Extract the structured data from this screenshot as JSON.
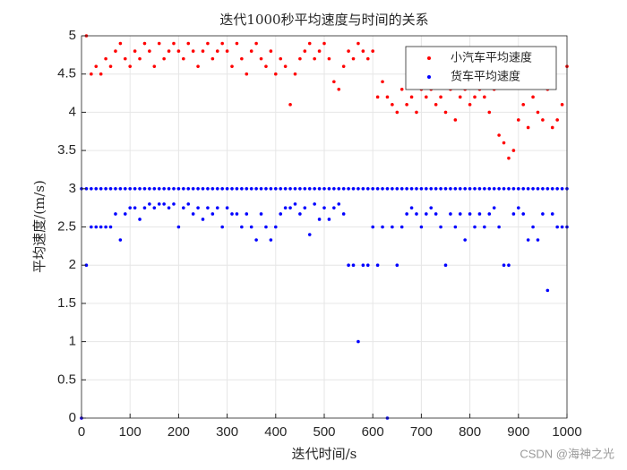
{
  "chart_data": {
    "type": "scatter",
    "title": "迭代1000秒平均速度与时间的关系",
    "xlabel": "迭代时间/s",
    "ylabel": "平均速度/(m/s)",
    "watermark": "CSDN @海神之光",
    "xlim": [
      0,
      1000
    ],
    "ylim": [
      0,
      5
    ],
    "xticks": [
      0,
      100,
      200,
      300,
      400,
      500,
      600,
      700,
      800,
      900,
      1000
    ],
    "yticks": [
      0,
      0.5,
      1,
      1.5,
      2,
      2.5,
      3,
      3.5,
      4,
      4.5,
      5
    ],
    "grid": true,
    "legend": "upper right",
    "series": [
      {
        "name": "小汽车平均速度",
        "color": "#ff0000",
        "x": [
          0,
          10,
          20,
          30,
          40,
          50,
          60,
          70,
          80,
          90,
          100,
          110,
          120,
          130,
          140,
          150,
          160,
          170,
          180,
          190,
          200,
          210,
          220,
          230,
          240,
          250,
          260,
          270,
          280,
          290,
          300,
          310,
          320,
          330,
          340,
          350,
          360,
          370,
          380,
          390,
          400,
          410,
          420,
          430,
          440,
          450,
          460,
          470,
          480,
          490,
          500,
          510,
          520,
          530,
          540,
          550,
          560,
          570,
          580,
          590,
          600,
          610,
          620,
          630,
          640,
          650,
          660,
          670,
          680,
          690,
          700,
          710,
          720,
          730,
          740,
          750,
          760,
          770,
          780,
          790,
          800,
          810,
          820,
          830,
          840,
          850,
          860,
          870,
          880,
          890,
          900,
          910,
          920,
          930,
          940,
          950,
          960,
          970,
          980,
          990,
          1000
        ],
        "values": [
          0,
          5,
          4.5,
          4.6,
          4.5,
          4.7,
          4.6,
          4.8,
          4.9,
          4.7,
          4.6,
          4.8,
          4.7,
          4.9,
          4.8,
          4.6,
          4.9,
          4.7,
          4.8,
          4.9,
          4.8,
          4.7,
          4.9,
          4.8,
          4.6,
          4.8,
          4.9,
          4.7,
          4.8,
          4.9,
          4.8,
          4.6,
          4.9,
          4.7,
          4.5,
          4.8,
          4.9,
          4.7,
          4.6,
          4.8,
          4.5,
          4.7,
          4.6,
          4.1,
          4.5,
          4.7,
          4.8,
          4.9,
          4.7,
          4.8,
          4.9,
          4.7,
          4.4,
          4.3,
          4.6,
          4.8,
          4.7,
          4.9,
          4.8,
          4.7,
          4.8,
          4.2,
          4.4,
          4.2,
          4.1,
          4,
          4.3,
          4.1,
          4.2,
          4,
          4.3,
          4.2,
          4.3,
          4.1,
          4.2,
          4,
          4.3,
          3.9,
          4.2,
          4.3,
          4.1,
          4.2,
          4.3,
          4.2,
          4,
          4.3,
          3.7,
          3.6,
          3.4,
          3.5,
          3.9,
          4.1,
          3.8,
          4.2,
          4,
          3.9,
          4.3,
          3.8,
          3.9,
          4.1,
          4.6
        ]
      },
      {
        "name": "货车平均速度",
        "color": "#0000ff",
        "x": [
          0,
          10,
          20,
          30,
          40,
          50,
          60,
          70,
          80,
          90,
          100,
          110,
          120,
          130,
          140,
          150,
          160,
          170,
          180,
          190,
          200,
          210,
          220,
          230,
          240,
          250,
          260,
          270,
          280,
          290,
          300,
          310,
          320,
          330,
          340,
          350,
          360,
          370,
          380,
          390,
          400,
          410,
          420,
          430,
          440,
          450,
          460,
          470,
          480,
          490,
          500,
          510,
          520,
          530,
          540,
          550,
          560,
          570,
          580,
          590,
          600,
          610,
          620,
          630,
          640,
          650,
          660,
          670,
          680,
          690,
          700,
          710,
          720,
          730,
          740,
          750,
          760,
          770,
          780,
          790,
          800,
          810,
          820,
          830,
          840,
          850,
          860,
          870,
          880,
          890,
          900,
          910,
          920,
          930,
          940,
          950,
          960,
          970,
          980,
          990,
          1000,
          0,
          10,
          20,
          30,
          40,
          50,
          60,
          70,
          80,
          90,
          100,
          110,
          120,
          130,
          140,
          150,
          160,
          170,
          180,
          190,
          200,
          210,
          220,
          230,
          240,
          250,
          260,
          270,
          280,
          290,
          300,
          310,
          320,
          330,
          340,
          350,
          360,
          370,
          380,
          390,
          400,
          410,
          420,
          430,
          440,
          450,
          460,
          470,
          480,
          490,
          500,
          510,
          520,
          530,
          540,
          550,
          560,
          570,
          580,
          590,
          600,
          610,
          620,
          630,
          640,
          650,
          660,
          670,
          680,
          690,
          700,
          710,
          720,
          730,
          740,
          750,
          760,
          770,
          780,
          790,
          800,
          810,
          820,
          830,
          840,
          850,
          860,
          870,
          880,
          890,
          900,
          910,
          920,
          930,
          940,
          950,
          960,
          970,
          980,
          990,
          1000
        ],
        "values": [
          3,
          3,
          3,
          3,
          3,
          3,
          3,
          3,
          3,
          3,
          3,
          3,
          3,
          3,
          3,
          3,
          3,
          3,
          3,
          3,
          3,
          3,
          3,
          3,
          3,
          3,
          3,
          3,
          3,
          3,
          3,
          3,
          3,
          3,
          3,
          3,
          3,
          3,
          3,
          3,
          3,
          3,
          3,
          3,
          3,
          3,
          3,
          3,
          3,
          3,
          3,
          3,
          3,
          3,
          3,
          3,
          3,
          3,
          3,
          3,
          3,
          3,
          3,
          3,
          3,
          3,
          3,
          3,
          3,
          3,
          3,
          3,
          3,
          3,
          3,
          3,
          3,
          3,
          3,
          3,
          3,
          3,
          3,
          3,
          3,
          3,
          3,
          3,
          3,
          3,
          3,
          3,
          3,
          3,
          3,
          3,
          3,
          3,
          3,
          3,
          3,
          0,
          2,
          2.5,
          2.5,
          2.5,
          2.5,
          2.5,
          2.67,
          2.33,
          2.67,
          2.75,
          2.75,
          2.6,
          2.75,
          2.8,
          2.75,
          2.8,
          2.8,
          2.75,
          2.8,
          2.5,
          2.75,
          2.8,
          2.67,
          2.75,
          2.6,
          2.75,
          2.67,
          2.75,
          2.5,
          2.75,
          2.67,
          2.67,
          2.5,
          2.67,
          2.5,
          2.33,
          2.67,
          2.5,
          2.33,
          2.5,
          2.67,
          2.75,
          2.75,
          2.8,
          2.67,
          2.75,
          2.4,
          2.8,
          2.6,
          2.75,
          2.6,
          2.75,
          2.8,
          2.67,
          2,
          2,
          1,
          2,
          2,
          2.5,
          2,
          2.5,
          0,
          2.5,
          2,
          2.5,
          2.67,
          2.75,
          2.67,
          2.5,
          2.67,
          2.75,
          2.67,
          2.5,
          2,
          2.67,
          2.5,
          2.67,
          2.33,
          2.67,
          2.5,
          2.67,
          2.5,
          2.67,
          2.75,
          2.5,
          2,
          2,
          2.67,
          2.75,
          2.67,
          2.33,
          2.5,
          2.33,
          2.67,
          1.67,
          2.67,
          2.5,
          2.5,
          2.5
        ]
      }
    ]
  }
}
